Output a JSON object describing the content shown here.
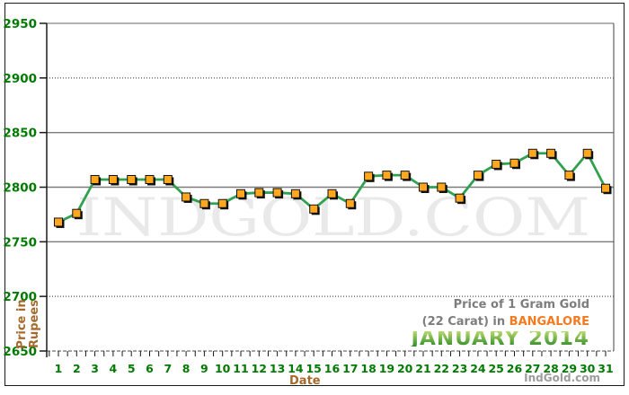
{
  "title": {
    "line1": "Price of 1 Gram Gold",
    "line2_prefix": "(22 Carat) in ",
    "line2_highlight": "BANGALORE",
    "line3": "JANUARY 2014"
  },
  "watermark": "INDGOLD.COM",
  "brand": "IndGold.com",
  "axes": {
    "y_axis_label_line1": "Price in",
    "y_axis_label_line2": "Rupees",
    "x_axis_label": "Date",
    "y_ticks": [
      2950,
      2900,
      2850,
      2800,
      2750,
      2700,
      2650
    ]
  },
  "colors": {
    "axis_label_green": "#007a00",
    "axis_title_brown": "#a5692b",
    "line_green": "#2fa14f",
    "marker_orange": "#ffa81e",
    "marker_shadow": "#111111",
    "grid_gray": "#7b7b7b",
    "title_gray": "#7d7d7d",
    "city_orange": "#f47a1f",
    "watermark_gray": "#e9e9e9",
    "brand_gray": "#9c9c9c"
  },
  "chart_data": {
    "type": "line",
    "title": "Price of 1 Gram Gold (22 Carat) in Bangalore - January 2014",
    "xlabel": "Date",
    "ylabel": "Price in Rupees",
    "ylim": [
      2650,
      2950
    ],
    "y_tick_step": 50,
    "grid": "horizontal",
    "legend": "none",
    "x": [
      1,
      2,
      3,
      4,
      5,
      6,
      7,
      8,
      9,
      10,
      11,
      12,
      13,
      14,
      15,
      16,
      17,
      18,
      19,
      20,
      21,
      22,
      23,
      24,
      25,
      26,
      27,
      28,
      29,
      30,
      31
    ],
    "values": [
      2768,
      2776,
      2807,
      2807,
      2807,
      2807,
      2807,
      2791,
      2785,
      2785,
      2794,
      2795,
      2795,
      2794,
      2780,
      2794,
      2785,
      2810,
      2811,
      2811,
      2800,
      2800,
      2790,
      2811,
      2821,
      2822,
      2831,
      2831,
      2811,
      2831,
      2799
    ]
  }
}
